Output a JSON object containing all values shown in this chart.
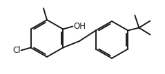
{
  "bg_color": "#ffffff",
  "line_color": "#1a1a1a",
  "line_width": 1.4,
  "figsize": [
    2.39,
    1.08
  ],
  "dpi": 100
}
